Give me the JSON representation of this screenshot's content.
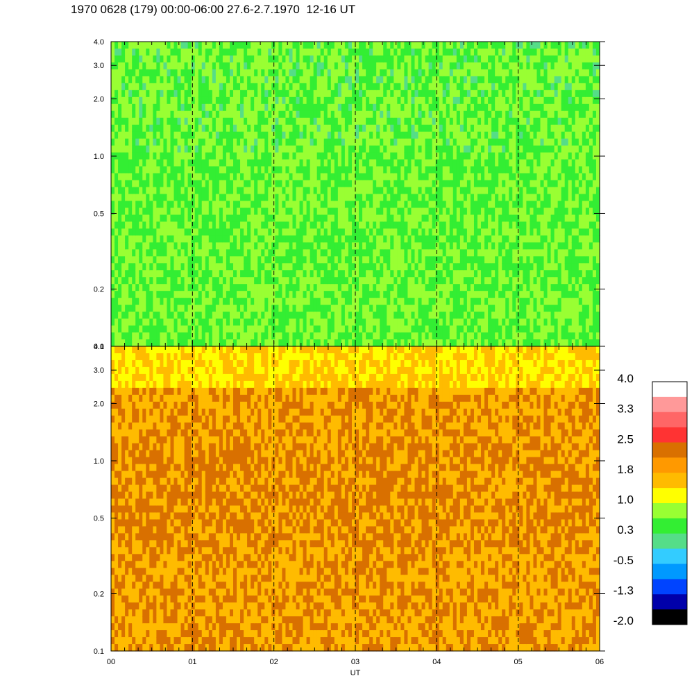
{
  "chart_data": {
    "type": "heatmap",
    "title": "1970 0628 (179) 00:00-06:00 27.6-2.7.1970  12-16 UT",
    "xlabel": "UT",
    "x_ticks": [
      "00",
      "01",
      "02",
      "03",
      "04",
      "05",
      "06"
    ],
    "xlim": [
      0,
      6
    ],
    "y_scale": "log",
    "panels": [
      {
        "name": "upper",
        "ylim": [
          0.1,
          4.0
        ],
        "y_ticks": [
          {
            "v": 0.1,
            "l": "0.1"
          },
          {
            "v": 0.2,
            "l": "0.2"
          },
          {
            "v": 0.5,
            "l": "0.5"
          },
          {
            "v": 1.0,
            "l": "1.0"
          },
          {
            "v": 2.0,
            "l": "2.0"
          },
          {
            "v": 3.0,
            "l": "3.0"
          },
          {
            "v": 4.0,
            "l": "4.0"
          }
        ],
        "dominant_levels": [
          "0.3",
          "1.0"
        ]
      },
      {
        "name": "lower",
        "ylim": [
          0.1,
          4.0
        ],
        "y_ticks": [
          {
            "v": 0.1,
            "l": "0.1"
          },
          {
            "v": 0.2,
            "l": "0.2"
          },
          {
            "v": 0.5,
            "l": "0.5"
          },
          {
            "v": 1.0,
            "l": "1.0"
          },
          {
            "v": 2.0,
            "l": "2.0"
          },
          {
            "v": 3.0,
            "l": "3.0"
          },
          {
            "v": 4.0,
            "l": "4.0"
          }
        ],
        "dominant_levels": [
          "1.8",
          "2.5"
        ]
      }
    ],
    "colorbar": {
      "labels": [
        "4.0",
        "3.3",
        "2.5",
        "1.8",
        "1.0",
        "0.3",
        "-0.5",
        "-1.3",
        "-2.0"
      ],
      "colors": [
        "#ffffff",
        "#ff9999",
        "#ff6666",
        "#ff3333",
        "#d97000",
        "#ff9900",
        "#ffbb00",
        "#ffff00",
        "#99ff33",
        "#33ee33",
        "#55dd88",
        "#33ccff",
        "#0099ff",
        "#0044ff",
        "#0000aa",
        "#000000"
      ]
    },
    "grid_lines_dashed_at_hours": [
      1,
      2,
      3,
      4,
      5
    ]
  }
}
